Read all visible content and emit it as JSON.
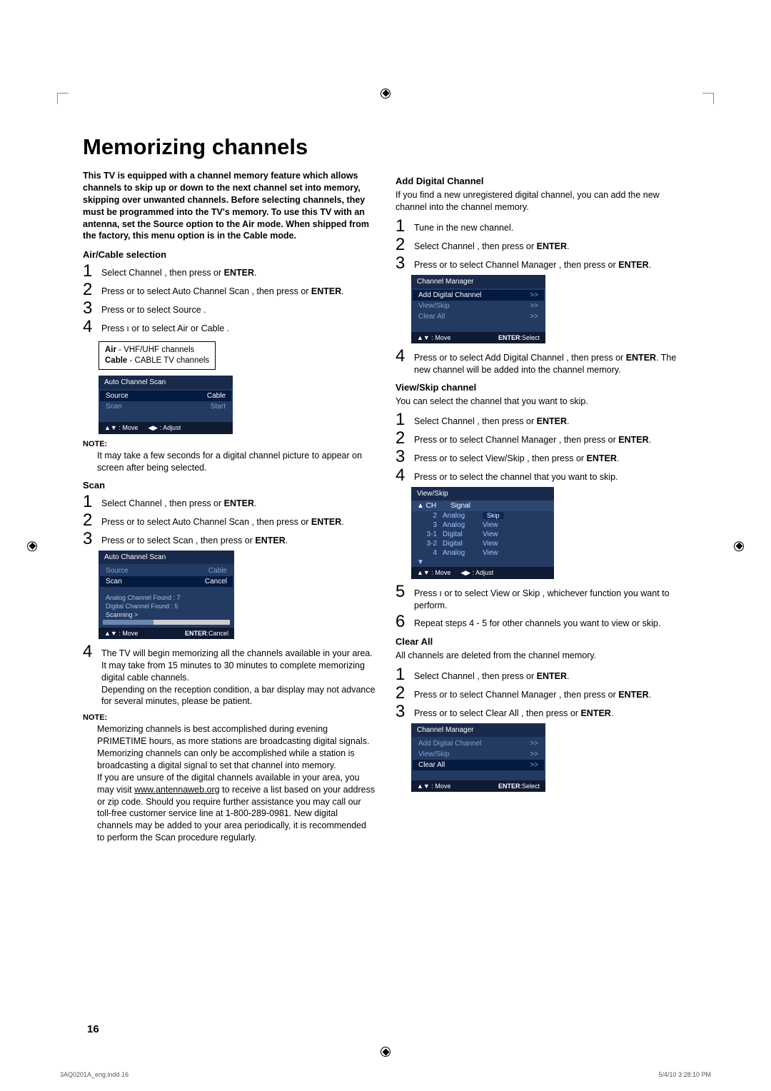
{
  "title": "Memorizing channels",
  "intro": "This TV is equipped with a channel memory feature which allows channels to skip up or down to the next channel set into memory, skipping over unwanted channels. Before selecting channels, they must be programmed into the TV's memory. To use this TV with an antenna, set the Source option to the Air mode. When shipped from the factory, this menu option is in the Cable mode.",
  "left": {
    "h_aircable": "Air/Cable selection",
    "ac_steps": [
      "Select  Channel , then press     or ENTER.",
      "Press     or     to select  Auto Channel Scan , then press     or ENTER.",
      "Press     or     to select  Source .",
      "Press  ı  or     to select  Air  or  Cable ."
    ],
    "info_air": "Air - VHF/UHF channels",
    "info_cable": "Cable - CABLE TV channels",
    "menu1": {
      "title": "Auto Channel Scan",
      "rows": [
        {
          "k": "Source",
          "v": "Cable",
          "sel": true
        },
        {
          "k": "Scan",
          "v": "Start",
          "dim": true
        }
      ],
      "foot_l": "▲▼ : Move",
      "foot_r": "◀▶ : Adjust"
    },
    "note1_label": "NOTE:",
    "note1": "It may take a few seconds for a digital channel picture to appear on screen after being selected.",
    "h_scan": "Scan",
    "scan_steps": [
      "Select  Channel , then press     or ENTER.",
      "Press     or     to select Auto Channel Scan , then press     or ENTER.",
      "Press     or     to select  Scan , then press     or ENTER."
    ],
    "menu2": {
      "title": "Auto Channel Scan",
      "rows": [
        {
          "k": "Source",
          "v": "Cable",
          "dim": true
        },
        {
          "k": "Scan",
          "v": "Cancel",
          "sel": true
        }
      ],
      "info1": "Analog Channel Found : 7",
      "info2": "Digital Channel Found : 5",
      "info3": "Scanning >",
      "foot_l": "▲▼ : Move",
      "foot_r": "ENTER:Cancel"
    },
    "scan_step4": "The TV will begin memorizing all the channels available in your area.",
    "scan_step4b": "It may take from 15 minutes to 30 minutes to complete memorizing digital cable channels.",
    "scan_step4c": "Depending on the reception condition, a bar display may not advance for several minutes, please be patient.",
    "note2_label": "NOTE:",
    "note2a": "Memorizing channels is best accomplished during evening  PRIMETIME  hours, as more stations are broadcasting digital signals. Memorizing channels can only be accomplished while a station is broadcasting a digital signal to set that channel into memory.",
    "note2b": "If you are unsure of the digital channels available in your area, you may visit www.antennaweb.org to receive a list based on your address or zip code. Should you require further assistance you may call our toll-free customer service line at 1-800-289-0981. New digital channels may be added to your area periodically, it is recommended to perform the  Scan  procedure regularly."
  },
  "right": {
    "h_add": "Add Digital Channel",
    "add_body": "If you find a new unregistered digital channel, you can add the new channel into the channel memory.",
    "add_steps": [
      "Tune in the new channel.",
      "Select  Channel , then press     or ENTER.",
      "Press     or     to select  Channel Manager , then press     or ENTER."
    ],
    "menu3": {
      "title": "Channel Manager",
      "rows": [
        {
          "k": "Add Digital Channel",
          "v": ">>",
          "sel": true
        },
        {
          "k": "View/Skip",
          "v": ">>",
          "dim": true
        },
        {
          "k": "Clear All",
          "v": ">>",
          "dim": true
        }
      ],
      "foot_l": "▲▼ : Move",
      "foot_r": "ENTER:Select"
    },
    "add_step4": "Press     or     to select  Add Digital Channel , then press     or ENTER. The new channel will be added into the channel memory.",
    "h_vs": "View/Skip channel",
    "vs_body": "You can select the channel that you want to skip.",
    "vs_steps": [
      "Select  Channel , then press     or ENTER.",
      "Press     or     to select  Channel Manager , then press     or ENTER.",
      "Press     or     to select  View/Skip , then press     or ENTER.",
      "Press     or     to select the channel that you want to skip."
    ],
    "vs_menu": {
      "title": "View/Skip",
      "head": [
        "▲",
        "CH",
        "Signal",
        ""
      ],
      "rows": [
        [
          "",
          "2",
          "Analog",
          "Skip"
        ],
        [
          "",
          "3",
          "Analog",
          "View"
        ],
        [
          "",
          "3-1",
          "Digital",
          "View"
        ],
        [
          "",
          "3-2",
          "Digital",
          "View"
        ],
        [
          "",
          "4",
          "Analog",
          "View"
        ]
      ],
      "foot_l": "▲▼ : Move",
      "foot_r": "◀▶ : Adjust"
    },
    "vs_step5": "Press ı  or     to select  View  or  Skip , whichever function you want to perform.",
    "vs_step6": "Repeat steps 4 - 5 for other channels you want to view or skip.",
    "h_clear": "Clear All",
    "clear_body": "All channels are deleted from the channel memory.",
    "clear_steps": [
      "Select  Channel , then press     or ENTER.",
      "Press     or     to select  Channel Manager , then press     or ENTER.",
      "Press     or     to select  Clear All , then press     or ENTER."
    ],
    "menu4": {
      "title": "Channel Manager",
      "rows": [
        {
          "k": "Add Digital Channel",
          "v": ">>",
          "dim": true
        },
        {
          "k": "View/Skip",
          "v": ">>",
          "dim": true
        },
        {
          "k": "Clear All",
          "v": ">>",
          "sel": true
        }
      ],
      "foot_l": "▲▼ : Move",
      "foot_r": "ENTER:Select"
    }
  },
  "page_num": "16",
  "footer_l": "3AQ0201A_eng.indd   16",
  "footer_r": "5/4/10   3:28:10 PM"
}
